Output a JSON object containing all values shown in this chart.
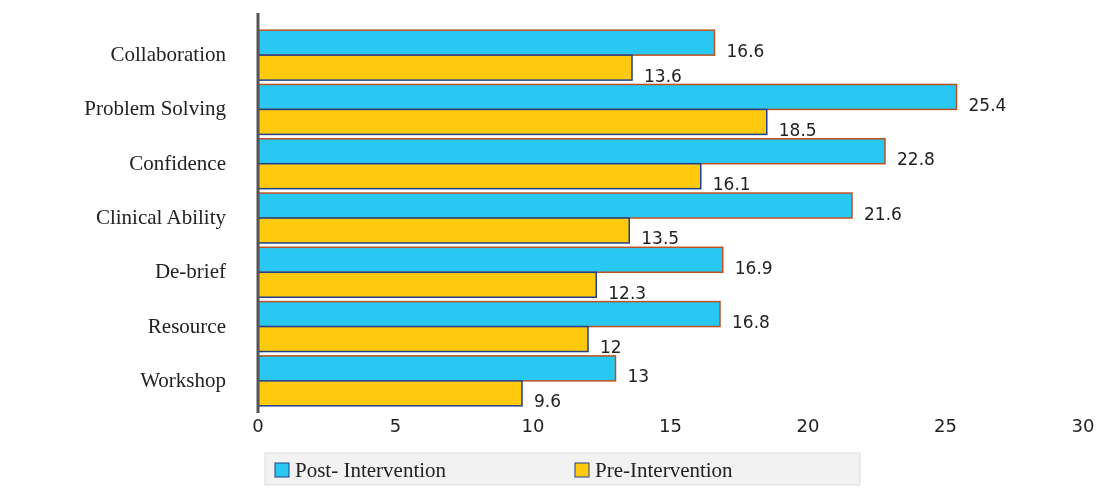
{
  "chart_data": {
    "type": "bar",
    "orientation": "horizontal",
    "categories": [
      "Collaboration",
      "Problem Solving",
      "Confidence",
      "Clinical Ability",
      "De-brief",
      "Resource",
      "Workshop"
    ],
    "series": [
      {
        "name": "Post- Intervention",
        "color": "#29c8f2",
        "values": [
          16.6,
          25.4,
          22.8,
          21.6,
          16.9,
          16.8,
          13
        ]
      },
      {
        "name": "Pre-Intervention",
        "color": "#ffc90e",
        "values": [
          13.6,
          18.5,
          16.1,
          13.5,
          12.3,
          12,
          9.6
        ]
      }
    ],
    "xlim": [
      0,
      30
    ],
    "xticks": [
      0,
      5,
      10,
      15,
      20,
      25,
      30
    ],
    "grid": false,
    "legend": "bottom",
    "data_labels": true
  }
}
